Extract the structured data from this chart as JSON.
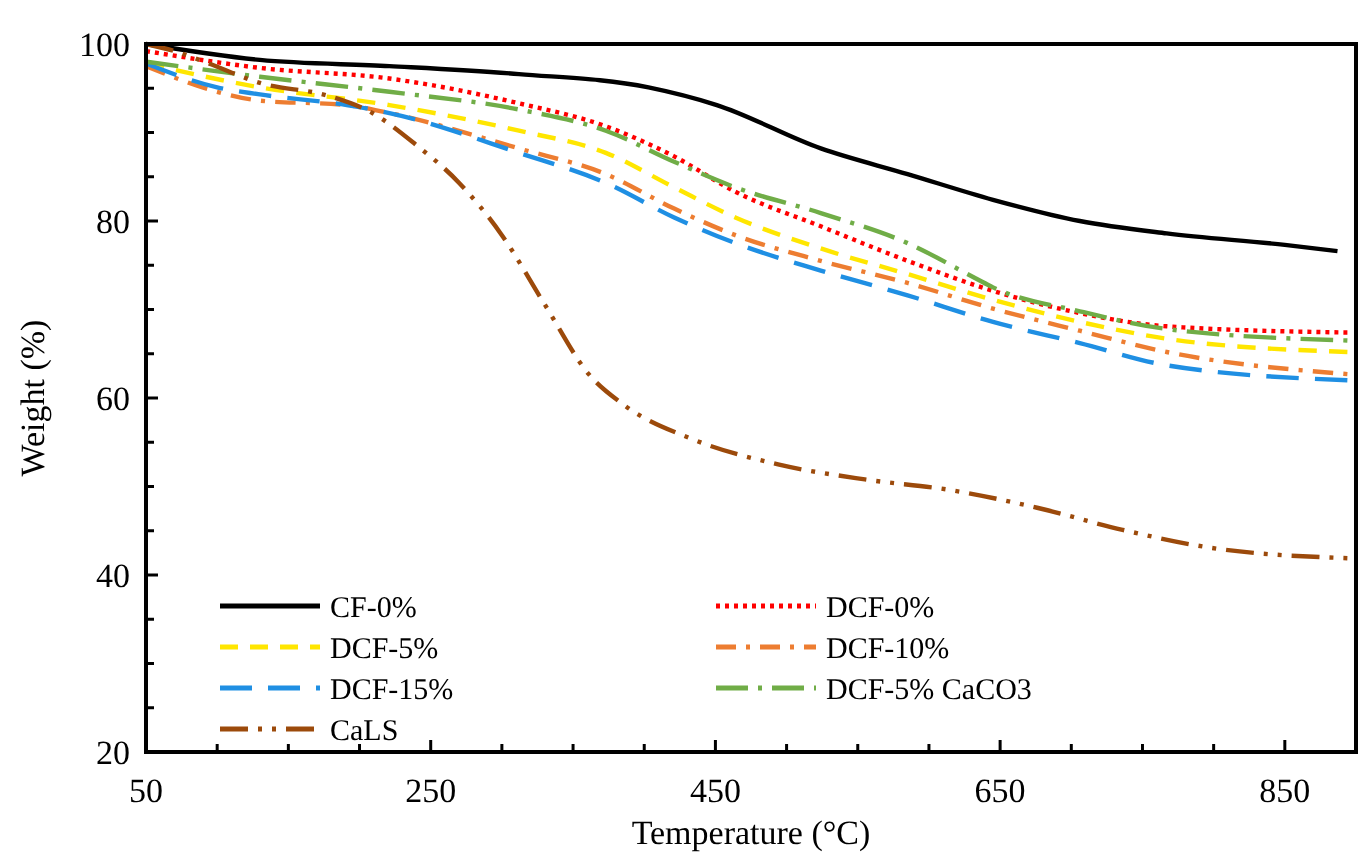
{
  "chart_data": {
    "type": "line",
    "xlabel": "Temperature (°C)",
    "ylabel": "Weight (%)",
    "xlim": [
      50,
      900
    ],
    "ylim": [
      20,
      100
    ],
    "xticks": [
      50,
      {
        "value": 100,
        "label": null
      },
      {
        "value": 150,
        "label": null
      },
      {
        "value": 200,
        "label": null
      },
      250,
      {
        "value": 300,
        "label": null
      },
      {
        "value": 350,
        "label": null
      },
      {
        "value": 400,
        "label": null
      },
      450,
      {
        "value": 500,
        "label": null
      },
      {
        "value": 550,
        "label": null
      },
      {
        "value": 600,
        "label": null
      },
      650,
      {
        "value": 700,
        "label": null
      },
      {
        "value": 750,
        "label": null
      },
      {
        "value": 800,
        "label": null
      },
      850
    ],
    "yticks": [
      20,
      {
        "value": 25,
        "label": null
      },
      {
        "value": 30,
        "label": null
      },
      {
        "value": 35,
        "label": null
      },
      40,
      {
        "value": 45,
        "label": null
      },
      {
        "value": 50,
        "label": null
      },
      {
        "value": 55,
        "label": null
      },
      60,
      {
        "value": 65,
        "label": null
      },
      {
        "value": 70,
        "label": null
      },
      {
        "value": 75,
        "label": null
      },
      80,
      {
        "value": 85,
        "label": null
      },
      {
        "value": 90,
        "label": null
      },
      {
        "value": 95,
        "label": null
      },
      100
    ],
    "grid": false,
    "legend": "bottom",
    "series": [
      {
        "name": "CF-0%",
        "color": "#000000",
        "line_style": "solid",
        "x": [
          50,
          130,
          221,
          312,
          403,
          451,
          524,
          585,
          645,
          706,
          767,
          850,
          887
        ],
        "values": [
          100,
          98.2,
          97.5,
          96.6,
          95.1,
          93.1,
          88.2,
          85.3,
          82.4,
          80.0,
          78.6,
          77.3,
          76.6
        ]
      },
      {
        "name": "DCF-0%",
        "color": "#ff0000",
        "line_style": "dotted",
        "x": [
          50,
          130,
          221,
          312,
          373,
          421,
          464,
          524,
          585,
          645,
          706,
          767,
          894
        ],
        "values": [
          99.2,
          97.3,
          96.1,
          93.3,
          90.7,
          87.3,
          83.3,
          79.4,
          75.5,
          72.1,
          69.6,
          68.1,
          67.4
        ]
      },
      {
        "name": "DCF-5%",
        "color": "#ffe600",
        "line_style": "dashed",
        "x": [
          50,
          130,
          221,
          312,
          373,
          421,
          464,
          524,
          585,
          645,
          706,
          767,
          894
        ],
        "values": [
          97.8,
          95.1,
          93.1,
          90.2,
          87.7,
          83.8,
          80.4,
          76.9,
          74.0,
          71.1,
          68.6,
          66.7,
          65.2
        ]
      },
      {
        "name": "DCF-10%",
        "color": "#ed7d31",
        "line_style": "dashdot",
        "x": [
          50,
          100,
          130,
          191,
          221,
          312,
          373,
          421,
          464,
          524,
          585,
          645,
          706,
          767,
          894
        ],
        "values": [
          97.5,
          94.6,
          93.6,
          93.1,
          92.2,
          88.2,
          85.3,
          81.4,
          78.4,
          75.5,
          73.0,
          70.1,
          67.6,
          65.2,
          62.7
        ]
      },
      {
        "name": "DCF-15%",
        "color": "#1f8fe3",
        "line_style": "longdash",
        "x": [
          50,
          100,
          130,
          191,
          221,
          312,
          373,
          421,
          464,
          524,
          585,
          645,
          706,
          767,
          894
        ],
        "values": [
          97.8,
          95.1,
          94.3,
          93.1,
          92.2,
          87.7,
          84.3,
          80.4,
          77.5,
          74.4,
          71.6,
          68.6,
          66.2,
          63.7,
          62.0
        ]
      },
      {
        "name": "DCF-5% CaCO3",
        "color": "#70ad47",
        "line_style": "longdashdot",
        "x": [
          50,
          130,
          221,
          312,
          373,
          421,
          464,
          524,
          585,
          633,
          645,
          706,
          767,
          894
        ],
        "values": [
          98.0,
          96.3,
          94.6,
          92.6,
          90.2,
          86.7,
          83.8,
          80.9,
          77.5,
          73.5,
          72.5,
          69.8,
          67.8,
          66.5
        ]
      },
      {
        "name": "CaLS",
        "color": "#9c4a0b",
        "line_style": "longdashdotdot",
        "x": [
          50,
          70,
          94,
          130,
          179,
          209,
          239,
          270,
          300,
          330,
          361,
          385,
          433,
          494,
          555,
          615,
          676,
          736,
          797,
          894
        ],
        "values": [
          100,
          99.2,
          97.8,
          95.6,
          94.1,
          92.2,
          88.7,
          84.3,
          78.4,
          70.6,
          62.7,
          59.3,
          55.4,
          52.5,
          50.8,
          49.6,
          47.6,
          45.1,
          43.1,
          41.9
        ]
      }
    ]
  }
}
